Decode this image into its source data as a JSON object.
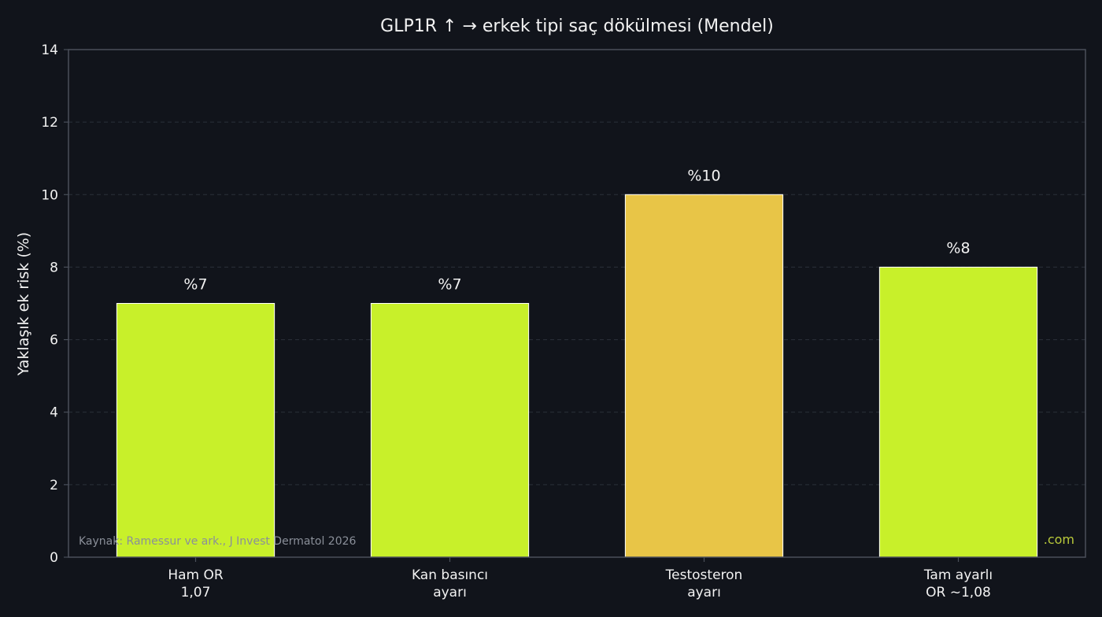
{
  "colors": {
    "background": "#11141b",
    "plot_background": "#11141b",
    "axis": "#4a4f5a",
    "grid": "#2b303a",
    "text": "#f2f2f2",
    "bar_lime": "#c8f02a",
    "bar_gold": "#e8c547",
    "source_text": "#8a8f99",
    "watermark_text": "#b9c93a"
  },
  "chart_data": {
    "type": "bar",
    "title": "GLP1R ↑ → erkek tipi saç dökülmesi (Mendel)",
    "xlabel": "",
    "ylabel": "Yaklaşık ek risk (%)",
    "ylim": [
      0,
      14
    ],
    "yticks": [
      0,
      2,
      4,
      6,
      8,
      10,
      12,
      14
    ],
    "grid": true,
    "categories": [
      [
        "Ham OR",
        "1,07"
      ],
      [
        "Kan basıncı",
        "ayarı"
      ],
      [
        "Testosteron",
        "ayarı"
      ],
      [
        "Tam ayarlı",
        "OR ~1,08"
      ]
    ],
    "values": [
      7,
      7,
      10,
      8
    ],
    "value_labels": [
      "%7",
      "%7",
      "%10",
      "%8"
    ],
    "bar_colors": [
      "#c8f02a",
      "#c8f02a",
      "#e8c547",
      "#c8f02a"
    ]
  },
  "source_note": "Kaynak: Ramessur ve ark., J Invest Dermatol 2026",
  "watermark": ".com"
}
